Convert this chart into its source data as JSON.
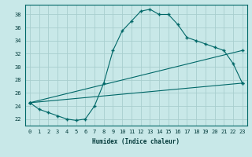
{
  "title": "",
  "xlabel": "Humidex (Indice chaleur)",
  "ylabel": "",
  "bg_color": "#c8e8e8",
  "grid_color": "#a8cece",
  "line_color": "#006868",
  "xlim": [
    -0.5,
    23.5
  ],
  "ylim": [
    21.0,
    39.5
  ],
  "yticks": [
    22,
    24,
    26,
    28,
    30,
    32,
    34,
    36,
    38
  ],
  "xticks": [
    0,
    1,
    2,
    3,
    4,
    5,
    6,
    7,
    8,
    9,
    10,
    11,
    12,
    13,
    14,
    15,
    16,
    17,
    18,
    19,
    20,
    21,
    22,
    23
  ],
  "line1_x": [
    0,
    1,
    2,
    3,
    4,
    5,
    6,
    7,
    8,
    9,
    10,
    11,
    12,
    13,
    14,
    15,
    16,
    17,
    18,
    19,
    20,
    21,
    22,
    23
  ],
  "line1_y": [
    24.5,
    23.5,
    23.0,
    22.5,
    22.0,
    21.8,
    22.0,
    24.0,
    27.5,
    32.5,
    35.5,
    37.0,
    38.5,
    38.8,
    38.0,
    38.0,
    36.5,
    34.5,
    34.0,
    33.5,
    33.0,
    32.5,
    30.5,
    27.5
  ],
  "line2_x": [
    0,
    23
  ],
  "line2_y": [
    24.5,
    27.5
  ],
  "line3_x": [
    0,
    23
  ],
  "line3_y": [
    24.5,
    32.5
  ],
  "xlabel_fontsize": 5.5,
  "tick_fontsize": 5.0
}
